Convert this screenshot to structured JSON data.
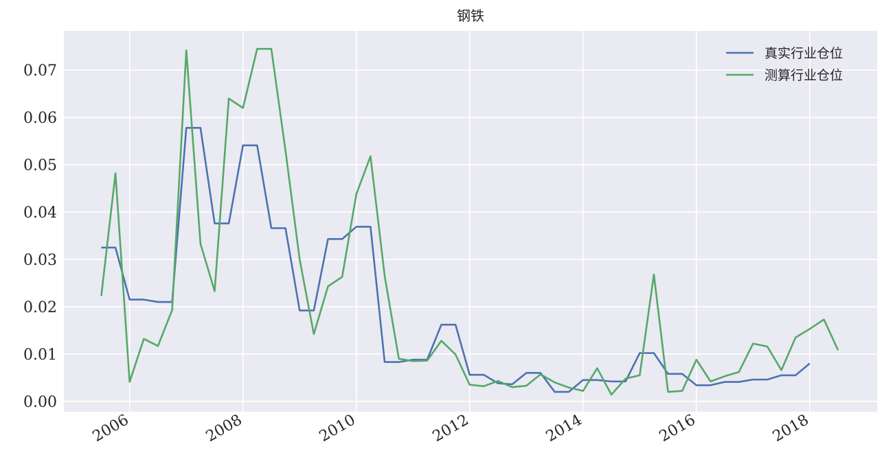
{
  "chart_data": {
    "type": "line",
    "title": "钢铁",
    "x": [
      2005.5,
      2005.75,
      2006,
      2006.25,
      2006.5,
      2006.75,
      2007,
      2007.25,
      2007.5,
      2007.75,
      2008,
      2008.25,
      2008.5,
      2008.75,
      2009,
      2009.25,
      2009.5,
      2009.75,
      2010,
      2010.25,
      2010.5,
      2010.75,
      2011,
      2011.25,
      2011.5,
      2011.75,
      2012,
      2012.25,
      2012.5,
      2012.75,
      2013,
      2013.25,
      2013.5,
      2013.75,
      2014,
      2014.25,
      2014.5,
      2014.75,
      2015,
      2015.25,
      2015.5,
      2015.75,
      2016,
      2016.25,
      2016.5,
      2016.75,
      2017,
      2017.25,
      2017.5,
      2017.75,
      2018,
      2018.25,
      2018.5
    ],
    "series": [
      {
        "name": "真实行业仓位",
        "color": "#4c72b0",
        "values": [
          0.0325,
          0.0325,
          0.0215,
          0.0215,
          0.021,
          0.021,
          0.0578,
          0.0578,
          0.0376,
          0.0376,
          0.0541,
          0.0541,
          0.0366,
          0.0366,
          0.0192,
          0.0192,
          0.0343,
          0.0343,
          0.0369,
          0.0369,
          0.0083,
          0.0083,
          0.0088,
          0.0088,
          0.0162,
          0.0162,
          0.0056,
          0.0056,
          0.0038,
          0.0036,
          0.006,
          0.006,
          0.002,
          0.002,
          0.0045,
          0.0045,
          0.0042,
          0.0042,
          0.0102,
          0.0102,
          0.0058,
          0.0058,
          0.0034,
          0.0034,
          0.0041,
          0.0041,
          0.0046,
          0.0046,
          0.0055,
          0.0055,
          0.008,
          null,
          null
        ]
      },
      {
        "name": "测算行业仓位",
        "color": "#55a868",
        "values": [
          0.0223,
          0.0482,
          0.0041,
          0.0132,
          0.0117,
          0.0193,
          0.0742,
          0.0333,
          0.0233,
          0.064,
          0.062,
          0.0745,
          0.0745,
          0.053,
          0.03,
          0.0142,
          0.0243,
          0.0263,
          0.0438,
          0.0518,
          0.0265,
          0.009,
          0.0085,
          0.0086,
          0.0128,
          0.0099,
          0.0035,
          0.0032,
          0.0043,
          0.003,
          0.0033,
          0.0057,
          0.004,
          0.0029,
          0.0022,
          0.007,
          0.0014,
          0.0048,
          0.0055,
          0.0268,
          0.002,
          0.0022,
          0.0088,
          0.0042,
          0.0053,
          0.0062,
          0.0122,
          0.0116,
          0.0066,
          0.0135,
          0.0153,
          0.0173,
          0.0108
        ]
      }
    ],
    "xlim": [
      2004.84,
      2019.19
    ],
    "xticks": [
      2006,
      2008,
      2010,
      2012,
      2014,
      2016,
      2018
    ],
    "ylim": [
      -0.0022,
      0.0783
    ],
    "yticks": [
      {
        "value": 0,
        "label": "0.00"
      },
      0.01,
      0.02,
      0.03,
      0.04,
      0.05,
      0.06,
      0.07
    ],
    "grid": true,
    "legend": "upper right"
  }
}
